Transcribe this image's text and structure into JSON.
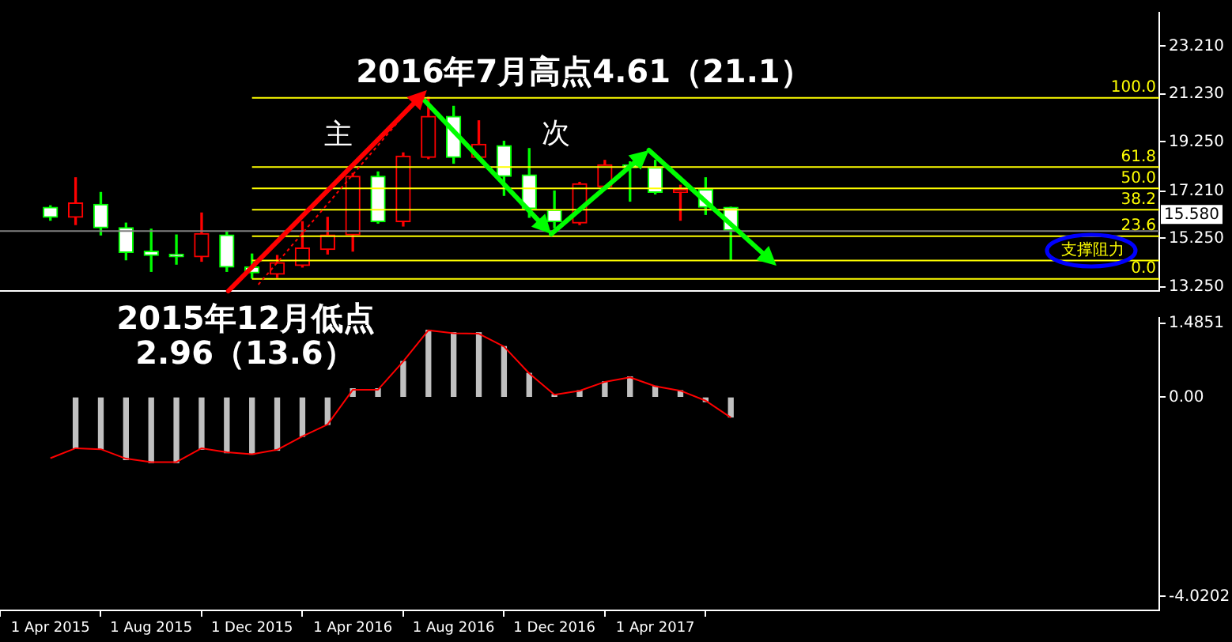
{
  "chart_data": [
    {
      "type": "candlestick",
      "x": [
        "2015-04",
        "2015-05",
        "2015-06",
        "2015-07",
        "2015-08",
        "2015-09",
        "2015-10",
        "2015-11",
        "2015-12",
        "2016-01",
        "2016-02",
        "2016-03",
        "2016-04",
        "2016-05",
        "2016-06",
        "2016-07",
        "2016-08",
        "2016-09",
        "2016-10",
        "2016-11",
        "2016-12",
        "2017-01",
        "2017-02",
        "2017-03",
        "2017-04",
        "2017-05",
        "2017-06",
        "2017-07"
      ],
      "ohlc": [
        [
          16.54,
          16.6,
          16.0,
          16.12
        ],
        [
          16.12,
          17.76,
          15.82,
          16.72
        ],
        [
          16.66,
          17.15,
          15.39,
          15.69
        ],
        [
          15.69,
          15.88,
          14.36,
          14.66
        ],
        [
          14.72,
          15.63,
          13.88,
          14.54
        ],
        [
          14.6,
          15.39,
          14.18,
          14.48
        ],
        [
          14.48,
          16.3,
          14.3,
          15.45
        ],
        [
          15.39,
          15.51,
          13.88,
          14.06
        ],
        [
          14.06,
          14.6,
          13.6,
          13.82
        ],
        [
          13.76,
          14.54,
          13.63,
          14.24
        ],
        [
          14.12,
          15.94,
          14.06,
          14.85
        ],
        [
          14.79,
          16.12,
          14.6,
          15.39
        ],
        [
          15.39,
          17.94,
          14.72,
          17.82
        ],
        [
          17.82,
          18.0,
          15.88,
          15.94
        ],
        [
          15.94,
          18.79,
          15.76,
          18.66
        ],
        [
          18.6,
          21.1,
          18.55,
          20.3
        ],
        [
          20.3,
          20.72,
          18.36,
          18.6
        ],
        [
          18.6,
          20.12,
          18.54,
          19.15
        ],
        [
          19.09,
          19.27,
          17.03,
          17.82
        ],
        [
          17.88,
          18.97,
          16.12,
          16.48
        ],
        [
          16.42,
          17.21,
          15.69,
          15.94
        ],
        [
          15.88,
          17.57,
          15.82,
          17.51
        ],
        [
          17.39,
          18.48,
          17.33,
          18.3
        ],
        [
          18.3,
          18.42,
          16.79,
          18.18
        ],
        [
          18.18,
          18.48,
          17.09,
          17.15
        ],
        [
          17.15,
          17.45,
          16.0,
          17.27
        ],
        [
          17.27,
          17.76,
          16.24,
          16.54
        ],
        [
          16.54,
          16.54,
          14.36,
          15.58
        ]
      ],
      "colors": [
        "#00ff00",
        "#ff0000",
        "#00ff00",
        "#00ff00",
        "#00ff00",
        "#00ff00",
        "#ff0000",
        "#00ff00",
        "#00ff00",
        "#ff0000",
        "#ff0000",
        "#ff0000",
        "#ff0000",
        "#00ff00",
        "#ff0000",
        "#ff0000",
        "#00ff00",
        "#ff0000",
        "#00ff00",
        "#00ff00",
        "#00ff00",
        "#ff0000",
        "#ff0000",
        "#00ff00",
        "#00ff00",
        "#ff0000",
        "#00ff00",
        "#00ff00"
      ],
      "xlim": [
        "2015-02",
        "2018-12"
      ],
      "ylim": [
        13.07,
        24.6
      ],
      "yticks": [
        {
          "value": 13.25,
          "label": "13.250"
        },
        {
          "value": 15.25,
          "label": "15.250"
        },
        {
          "value": 17.21,
          "label": "17.210"
        },
        {
          "value": 19.25,
          "label": "19.250"
        },
        {
          "value": 21.23,
          "label": "21.230"
        },
        {
          "value": 23.21,
          "label": "23.210"
        }
      ],
      "tick_labels": "y",
      "ref_lines": [
        {
          "axis": "y",
          "value": 15.58,
          "label": "15.580",
          "color": "#808080"
        },
        {
          "axis": "y",
          "value": 21.1,
          "color": "#ffff00"
        },
        {
          "axis": "y",
          "value": 18.235,
          "color": "#ffff00"
        },
        {
          "axis": "y",
          "value": 17.35,
          "color": "#ffff00"
        },
        {
          "axis": "y",
          "value": 16.465,
          "color": "#ffff00"
        },
        {
          "axis": "y",
          "value": 15.37,
          "color": "#ffff00"
        },
        {
          "axis": "y",
          "value": 14.36,
          "label": "支撑阻力",
          "color": "#ffff00"
        },
        {
          "axis": "y",
          "value": 13.6,
          "color": "#ffff00"
        }
      ],
      "annotations": [
        {
          "text": "2016年7月高点4.61（21.1）",
          "x": "2016-07",
          "y": 21.1
        },
        "主",
        "次",
        {
          "text": "2015年12月低点",
          "x": "2015-12",
          "y": 13.6
        },
        {
          "text": "2.96（13.6）",
          "x": "2015-12",
          "y": 13.6
        },
        {
          "text": "100.0",
          "y": 21.1
        },
        {
          "text": "61.8",
          "y": 18.235
        },
        {
          "text": "50.0",
          "y": 17.35
        },
        {
          "text": "38.2",
          "y": 16.465
        },
        {
          "text": "23.6",
          "y": 15.37
        },
        {
          "text": "0.0",
          "y": 13.6
        }
      ]
    },
    {
      "type": "bar",
      "x": [
        "2015-04",
        "2015-05",
        "2015-06",
        "2015-07",
        "2015-08",
        "2015-09",
        "2015-10",
        "2015-11",
        "2015-12",
        "2016-01",
        "2016-02",
        "2016-03",
        "2016-04",
        "2016-05",
        "2016-06",
        "2016-07",
        "2016-08",
        "2016-09",
        "2016-10",
        "2016-11",
        "2016-12",
        "2017-01",
        "2017-02",
        "2017-03",
        "2017-04",
        "2017-05",
        "2017-06",
        "2017-07"
      ],
      "series": [
        {
          "type": "bar",
          "color": "#c0c0c0",
          "values": [
            null,
            -1.03,
            -1.05,
            -1.26,
            -1.32,
            -1.32,
            -1.05,
            -1.12,
            -1.15,
            -1.07,
            -0.79,
            -0.55,
            0.17,
            0.17,
            0.72,
            1.35,
            1.3,
            1.3,
            1.02,
            0.48,
            0.05,
            0.13,
            0.31,
            0.41,
            0.22,
            0.13,
            -0.09,
            -0.4
          ]
        },
        {
          "type": "line",
          "color": "#ff0000",
          "values": [
            -1.23,
            -1.03,
            -1.05,
            -1.24,
            -1.31,
            -1.31,
            -1.03,
            -1.11,
            -1.15,
            -1.06,
            -0.79,
            -0.55,
            0.15,
            0.15,
            0.72,
            1.35,
            1.29,
            1.28,
            1.02,
            0.48,
            0.05,
            0.13,
            0.31,
            0.4,
            0.22,
            0.13,
            -0.07,
            -0.41
          ]
        }
      ],
      "xlim": [
        "2015-02",
        "2018-12"
      ],
      "xticks": [
        {
          "value": "2015-04",
          "label": "1 Apr 2015"
        },
        {
          "value": "2015-08",
          "label": "1 Aug 2015"
        },
        {
          "value": "2015-12",
          "label": "1 Dec 2015"
        },
        {
          "value": "2016-04",
          "label": "1 Apr 2016"
        },
        {
          "value": "2016-08",
          "label": "1 Aug 2016"
        },
        {
          "value": "2016-12",
          "label": "1 Dec 2016"
        },
        {
          "value": "2017-04",
          "label": "1 Apr 2017"
        }
      ],
      "ylim": [
        -4.3,
        1.6
      ],
      "yticks": [
        {
          "value": -4.0202,
          "label": "-4.0202"
        },
        {
          "value": 0,
          "label": "0.00"
        },
        {
          "value": 1.4851,
          "label": "1.4851"
        }
      ]
    }
  ]
}
